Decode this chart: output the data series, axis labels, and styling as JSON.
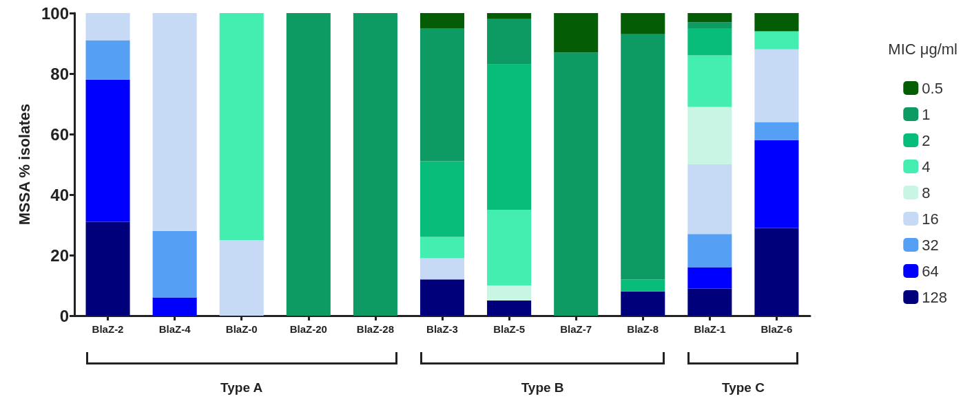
{
  "chart_data": {
    "type": "bar",
    "stacked": true,
    "ylabel": "MSSA % isolates",
    "legend_title": "MIC μg/ml",
    "legend": "right",
    "grid": false,
    "categories": [
      "BlaZ-2",
      "BlaZ-4",
      "BlaZ-0",
      "BlaZ-20",
      "BlaZ-28",
      "BlaZ-3",
      "BlaZ-5",
      "BlaZ-7",
      "BlaZ-8",
      "BlaZ-1",
      "BlaZ-6"
    ],
    "ylim": [
      0,
      100
    ],
    "yticks": [
      0,
      20,
      40,
      60,
      80,
      100
    ],
    "series": [
      {
        "name": "128",
        "color": "#00007a",
        "values": [
          31,
          0,
          0,
          0,
          0,
          12,
          5,
          0,
          8,
          9,
          29
        ]
      },
      {
        "name": "64",
        "color": "#0000ff",
        "values": [
          47,
          6,
          0,
          0,
          0,
          0,
          0,
          0,
          0,
          7,
          29
        ]
      },
      {
        "name": "32",
        "color": "#55a0f5",
        "values": [
          13,
          22,
          0,
          0,
          0,
          0,
          0,
          0,
          0,
          11,
          6
        ]
      },
      {
        "name": "16",
        "color": "#c6daf5",
        "values": [
          9,
          72,
          25,
          0,
          0,
          7,
          0,
          0,
          0,
          23,
          24
        ]
      },
      {
        "name": "8",
        "color": "#c8f5e4",
        "values": [
          0,
          0,
          0,
          0,
          0,
          0,
          5,
          0,
          0,
          19,
          0
        ]
      },
      {
        "name": "4",
        "color": "#44eeb0",
        "values": [
          0,
          0,
          75,
          0,
          0,
          7,
          25,
          0,
          0,
          17,
          6
        ]
      },
      {
        "name": "2",
        "color": "#08bd7a",
        "values": [
          0,
          0,
          0,
          0,
          0,
          25,
          48,
          0,
          4,
          9,
          0
        ]
      },
      {
        "name": "1",
        "color": "#0d9a63",
        "values": [
          0,
          0,
          0,
          100,
          100,
          44,
          15,
          87,
          81,
          2,
          0
        ]
      },
      {
        "name": "0.5",
        "color": "#045c04",
        "values": [
          0,
          0,
          0,
          0,
          0,
          5,
          2,
          13,
          7,
          3,
          6
        ]
      }
    ],
    "annotations": [
      "Type A",
      "Type B",
      "Type C"
    ]
  }
}
